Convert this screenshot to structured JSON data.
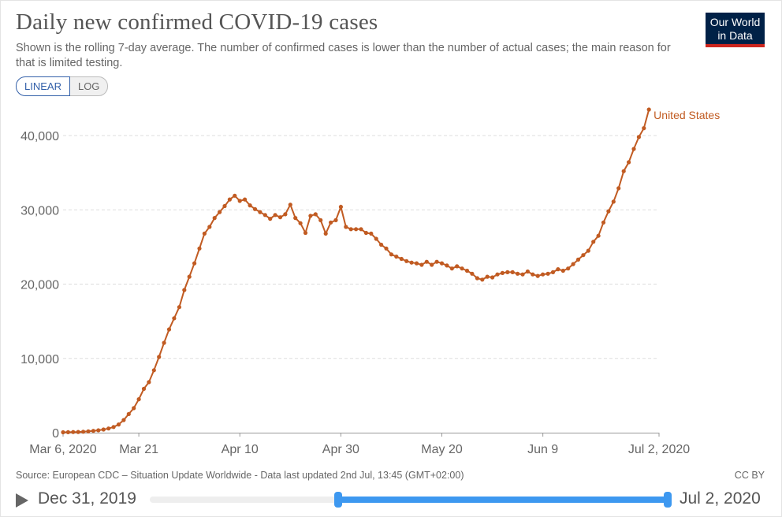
{
  "header": {
    "title": "Daily new confirmed COVID-19 cases",
    "subtitle": "Shown is the rolling 7-day average. The number of confirmed cases is lower than the number of actual cases; the main reason for that is limited testing.",
    "logo_line1": "Our World",
    "logo_line2": "in Data"
  },
  "controls": {
    "linear_label": "LINEAR",
    "log_label": "LOG",
    "active": "LINEAR"
  },
  "footer": {
    "source": "Source: European CDC – Situation Update Worldwide - Data last updated 2nd Jul, 13:45 (GMT+02:00)",
    "license": "CC BY"
  },
  "timeline": {
    "start_label": "Dec 31, 2019",
    "end_label": "Jul 2, 2020"
  },
  "colors": {
    "series": "#c15b22",
    "grid": "#dddddd",
    "slider": "#3d98f0",
    "logo_bg": "#002147",
    "logo_accent": "#ce261e"
  },
  "chart_data": {
    "type": "line",
    "xlabel": "",
    "ylabel": "",
    "x_start": "2020-03-06",
    "x_end": "2020-07-02",
    "x_ticks": [
      "Mar 6, 2020",
      "Mar 21",
      "Apr 10",
      "Apr 30",
      "May 20",
      "Jun 9",
      "Jul 2, 2020"
    ],
    "x_tick_days": [
      0,
      15,
      35,
      55,
      75,
      95,
      118
    ],
    "ylim": [
      0,
      43500
    ],
    "y_ticks": [
      0,
      10000,
      20000,
      30000,
      40000
    ],
    "y_tick_labels": [
      "0",
      "10,000",
      "20,000",
      "30,000",
      "40,000"
    ],
    "grid": true,
    "series": [
      {
        "name": "United States",
        "values": [
          50,
          60,
          80,
          100,
          130,
          180,
          240,
          320,
          420,
          560,
          760,
          1100,
          1700,
          2500,
          3300,
          4500,
          5900,
          6800,
          8400,
          10200,
          12100,
          13900,
          15400,
          16900,
          19200,
          21000,
          22800,
          24800,
          26800,
          27700,
          28900,
          29700,
          30500,
          31400,
          31900,
          31200,
          31400,
          30600,
          30100,
          29700,
          29300,
          28800,
          29300,
          29000,
          29400,
          30700,
          28900,
          28200,
          26900,
          29200,
          29400,
          28600,
          26800,
          28300,
          28600,
          30400,
          27700,
          27400,
          27400,
          27400,
          26900,
          26800,
          26100,
          25300,
          24800,
          24000,
          23700,
          23400,
          23100,
          22900,
          22800,
          22600,
          23000,
          22600,
          23000,
          22800,
          22500,
          22100,
          22400,
          22100,
          21800,
          21400,
          20800,
          20600,
          21000,
          20900,
          21300,
          21500,
          21600,
          21600,
          21400,
          21300,
          21700,
          21300,
          21100,
          21300,
          21400,
          21600,
          22000,
          21800,
          22100,
          22700,
          23300,
          23900,
          24500,
          25700,
          26500,
          28300,
          29800,
          31100,
          32900,
          35200,
          36400,
          38200,
          39800,
          41000,
          43500
        ]
      }
    ]
  }
}
